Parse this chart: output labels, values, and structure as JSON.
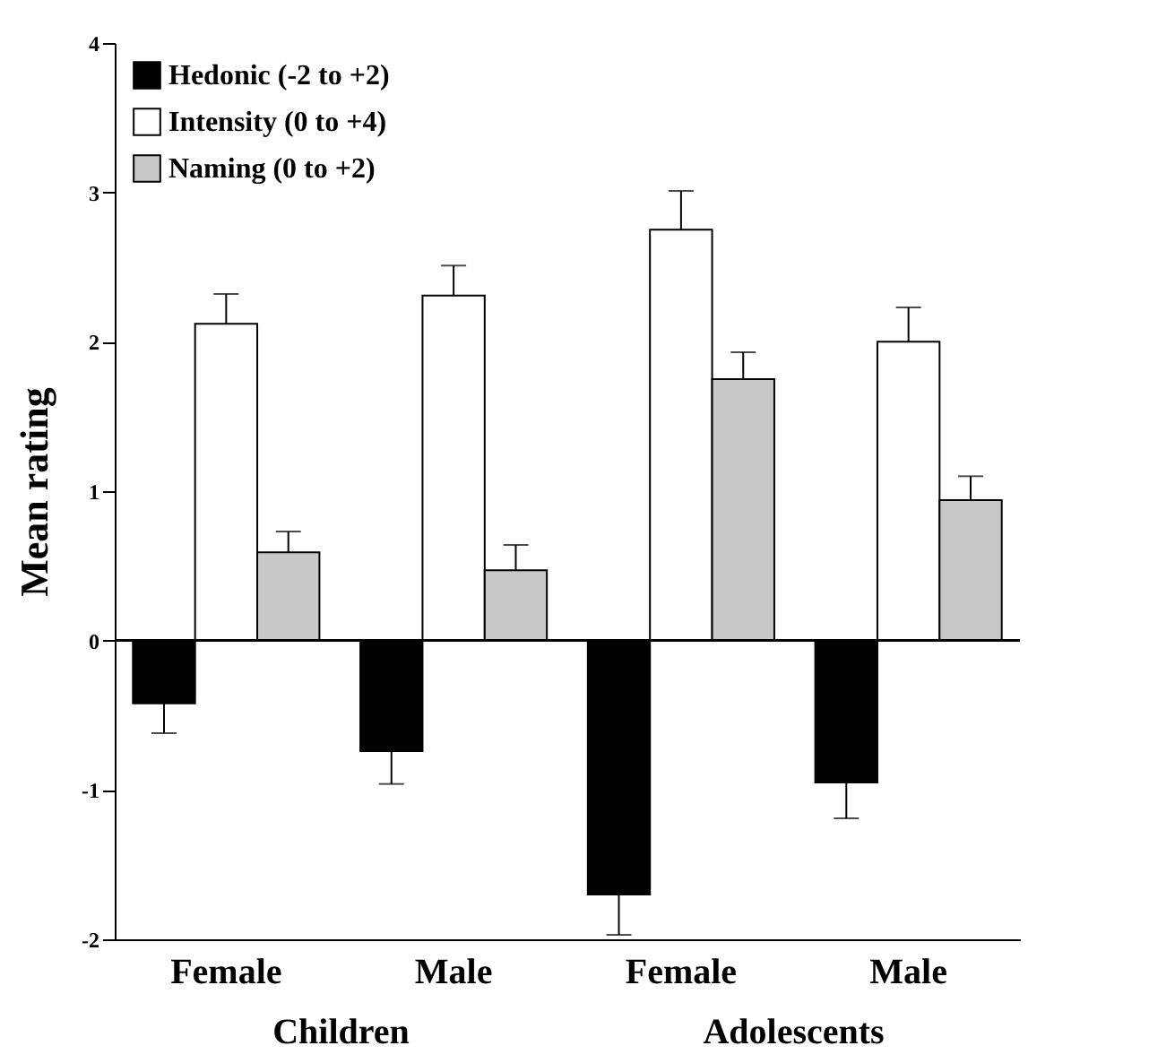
{
  "chart_data": {
    "type": "bar",
    "ylabel": "Mean rating",
    "categories": [
      "Female",
      "Male",
      "Female",
      "Male"
    ],
    "annotations": [
      "Children",
      "Adolescents"
    ],
    "series": [
      {
        "name": "Hedonic (-2 to +2)",
        "color": "#000000",
        "values": [
          -0.42,
          -0.74,
          -1.7,
          -0.95
        ],
        "errors": [
          0.2,
          0.22,
          0.27,
          0.24
        ]
      },
      {
        "name": "Intensity (0 to +4)",
        "color": "#ffffff",
        "values": [
          2.12,
          2.31,
          2.75,
          2.0
        ],
        "errors": [
          0.2,
          0.2,
          0.26,
          0.23
        ]
      },
      {
        "name": "Naming (0 to +2)",
        "color": "#c8c8c8",
        "values": [
          0.59,
          0.47,
          1.75,
          0.94
        ],
        "errors": [
          0.14,
          0.17,
          0.18,
          0.16
        ]
      }
    ],
    "ylim": [
      -2,
      4
    ],
    "yticks": [
      -2,
      -1,
      0,
      1,
      2,
      3,
      4
    ],
    "grid": false,
    "legend": "top left",
    "ref_lines": [
      {
        "axis": "y",
        "value": 0
      }
    ]
  }
}
